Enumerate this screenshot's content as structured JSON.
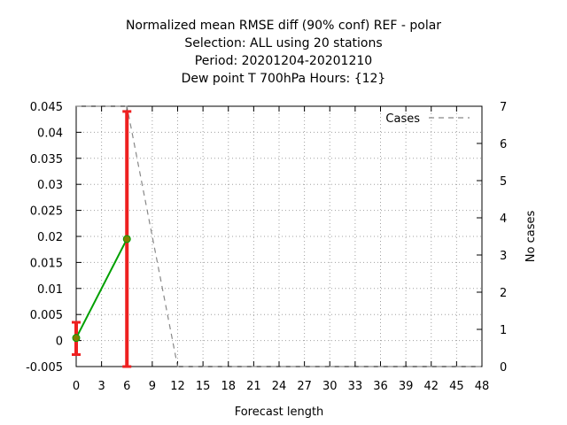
{
  "chart_data": {
    "type": "line",
    "title_lines": [
      "Normalized mean RMSE diff (90% conf) REF - polar",
      "Selection: ALL using    20 stations",
      "Period: 20201204-20201210",
      "Dew point T 700hPa   Hours: {12}"
    ],
    "xlabel": "Forecast length",
    "ylabel_right": "No cases",
    "x_ticks": [
      0,
      3,
      6,
      9,
      12,
      15,
      18,
      21,
      24,
      27,
      30,
      33,
      36,
      39,
      42,
      45,
      48
    ],
    "xlim": [
      0,
      48
    ],
    "y_ticks": [
      "-0.005",
      "0",
      "0.005",
      "0.01",
      "0.015",
      "0.02",
      "0.025",
      "0.03",
      "0.035",
      "0.04",
      "0.045"
    ],
    "ylim": [
      -0.005,
      0.045
    ],
    "y2_ticks": [
      "0",
      "1",
      "2",
      "3",
      "4",
      "5",
      "6",
      "7"
    ],
    "y2lim": [
      0,
      7
    ],
    "grid": true,
    "legend_position": "top-right",
    "series": [
      {
        "role": "rmse_diff",
        "color": "#00a000",
        "x": [
          0,
          6
        ],
        "y": [
          0.0005,
          0.0195
        ],
        "err_low": [
          -0.0027,
          -0.005
        ],
        "err_high": [
          0.0035,
          0.044
        ],
        "err_color": "#ee2020",
        "marker_color": "#808000"
      },
      {
        "name": "Cases",
        "axis": "right",
        "color": "#888888",
        "dashed": true,
        "x": [
          0,
          3,
          6,
          9,
          12,
          15,
          18,
          21,
          24,
          27,
          30,
          33,
          36,
          39,
          42,
          45,
          48
        ],
        "y": [
          7,
          7,
          7,
          3.5,
          0,
          0,
          0,
          0,
          0,
          0,
          0,
          0,
          0,
          0,
          0,
          0,
          0
        ]
      }
    ]
  }
}
